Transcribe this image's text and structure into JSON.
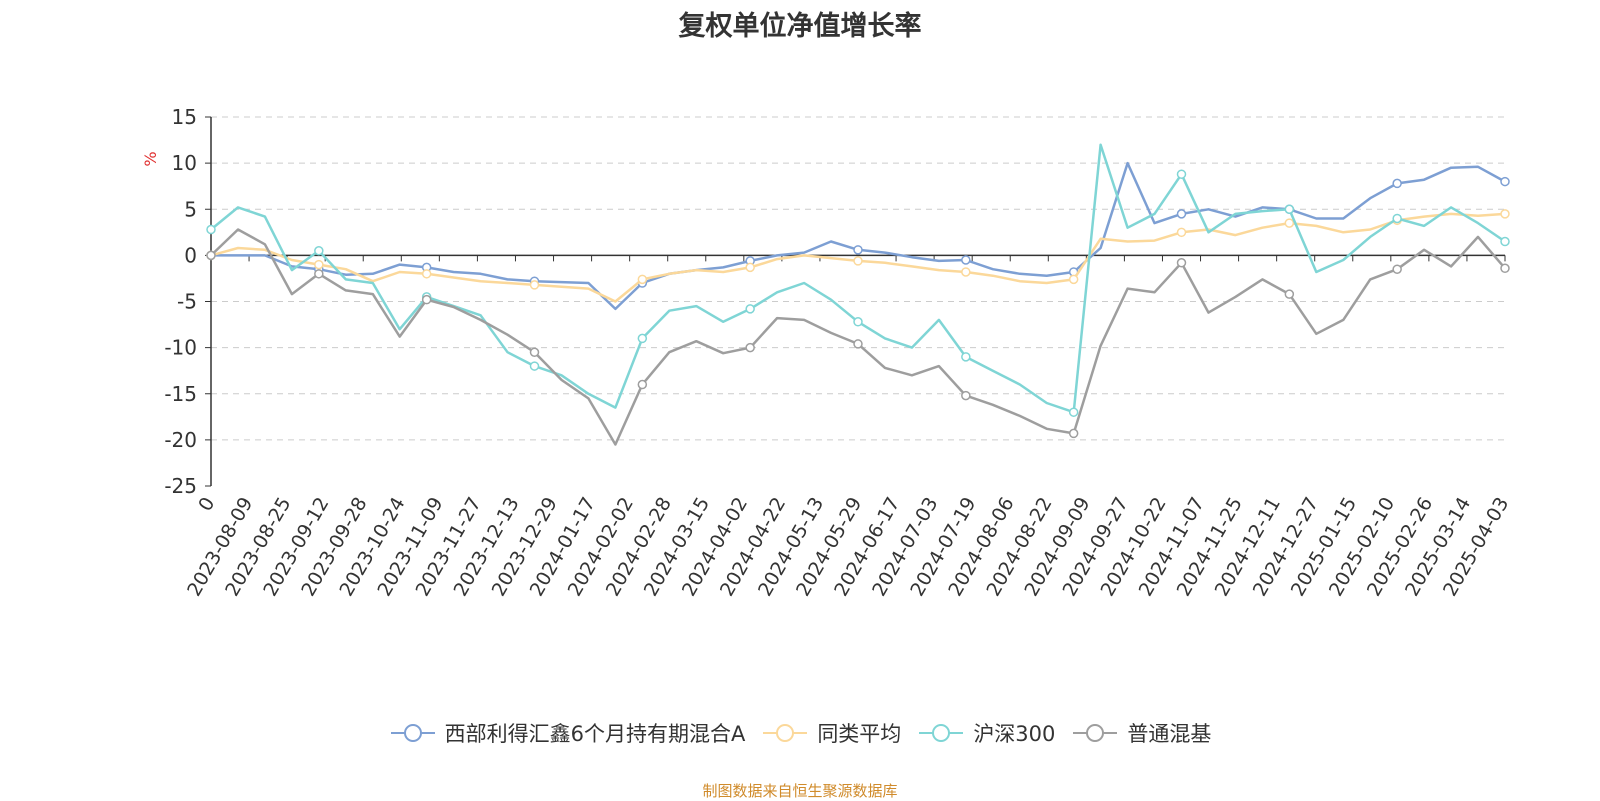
{
  "chart_data": {
    "type": "line",
    "title": "复权单位净值增长率",
    "ylabel": "%",
    "ylim": [
      -25,
      15
    ],
    "yticks": [
      15,
      10,
      5,
      0,
      -5,
      -10,
      -15,
      -20,
      -25
    ],
    "grid": true,
    "legend_position": "bottom",
    "x_tick_labels": [
      "0",
      "2023-08-09",
      "2023-08-25",
      "2023-09-12",
      "2023-09-28",
      "2023-10-24",
      "2023-11-09",
      "2023-11-27",
      "2023-12-13",
      "2023-12-29",
      "2024-01-17",
      "2024-02-02",
      "2024-02-28",
      "2024-03-15",
      "2024-04-02",
      "2024-04-22",
      "2024-05-13",
      "2024-05-29",
      "2024-06-17",
      "2024-07-03",
      "2024-07-19",
      "2024-08-06",
      "2024-08-22",
      "2024-09-09",
      "2024-09-27",
      "2024-10-22",
      "2024-11-07",
      "2024-11-25",
      "2024-12-11",
      "2024-12-27",
      "2025-01-15",
      "2025-02-10",
      "2025-02-26",
      "2025-03-14",
      "2025-04-03"
    ],
    "series": [
      {
        "name": "西部利得汇鑫6个月持有期混合A",
        "color": "#7d9fd3",
        "values": [
          0,
          0,
          0,
          -1.2,
          -1.5,
          -2.1,
          -2.0,
          -1.0,
          -1.3,
          -1.8,
          -2.0,
          -2.6,
          -2.8,
          -2.9,
          -3.0,
          -5.8,
          -3.0,
          -2.0,
          -1.6,
          -1.3,
          -0.6,
          0,
          0.3,
          1.5,
          0.6,
          0.3,
          -0.2,
          -0.6,
          -0.5,
          -1.5,
          -2.0,
          -2.2,
          -1.8,
          0.8,
          10.0,
          3.5,
          4.5,
          5.0,
          4.2,
          5.2,
          5.0,
          4.0,
          4.0,
          6.2,
          7.8,
          8.2,
          9.5,
          9.6,
          8.0
        ]
      },
      {
        "name": "同类平均",
        "color": "#fbd89a",
        "values": [
          0,
          0.8,
          0.6,
          -0.5,
          -1.0,
          -1.5,
          -2.8,
          -1.8,
          -2.0,
          -2.4,
          -2.8,
          -3.0,
          -3.2,
          -3.4,
          -3.6,
          -5.0,
          -2.6,
          -2.0,
          -1.6,
          -1.8,
          -1.3,
          -0.4,
          0,
          -0.3,
          -0.6,
          -0.8,
          -1.2,
          -1.6,
          -1.8,
          -2.2,
          -2.8,
          -3.0,
          -2.6,
          1.8,
          1.5,
          1.6,
          2.5,
          2.8,
          2.2,
          3.0,
          3.5,
          3.2,
          2.5,
          2.8,
          3.8,
          4.2,
          4.5,
          4.3,
          4.5
        ]
      },
      {
        "name": "沪深300",
        "color": "#7fd5d5",
        "values": [
          2.8,
          5.2,
          4.2,
          -1.6,
          0.5,
          -2.6,
          -3.0,
          -8.0,
          -4.5,
          -5.5,
          -6.5,
          -10.5,
          -12.0,
          -13.0,
          -15.0,
          -16.5,
          -9.0,
          -6.0,
          -5.5,
          -7.2,
          -5.8,
          -4.0,
          -3.0,
          -4.8,
          -7.2,
          -9.0,
          -10.0,
          -7.0,
          -11.0,
          -12.5,
          -14.0,
          -16.0,
          -17.0,
          12.0,
          3.0,
          4.5,
          8.8,
          2.5,
          4.5,
          4.8,
          5.0,
          -1.8,
          -0.5,
          2.0,
          4.0,
          3.2,
          5.2,
          3.5,
          1.5
        ]
      },
      {
        "name": "普通混基",
        "color": "#9e9e9e",
        "values": [
          0,
          2.8,
          1.2,
          -4.2,
          -2.0,
          -3.8,
          -4.2,
          -8.8,
          -4.8,
          -5.6,
          -7.0,
          -8.6,
          -10.5,
          -13.5,
          -15.5,
          -20.5,
          -14.0,
          -10.5,
          -9.3,
          -10.6,
          -10.0,
          -6.8,
          -7.0,
          -8.4,
          -9.6,
          -12.2,
          -13.0,
          -12.0,
          -15.2,
          -16.2,
          -17.4,
          -18.8,
          -19.3,
          -9.8,
          -3.6,
          -4.0,
          -0.8,
          -6.2,
          -4.5,
          -2.6,
          -4.2,
          -8.5,
          -7.0,
          -2.6,
          -1.5,
          0.6,
          -1.2,
          2.0,
          -1.4
        ]
      }
    ]
  },
  "footer_text": "制图数据来自恒生聚源数据库",
  "footer_color": "#d08b2b",
  "ylabel_color": "#e03030"
}
